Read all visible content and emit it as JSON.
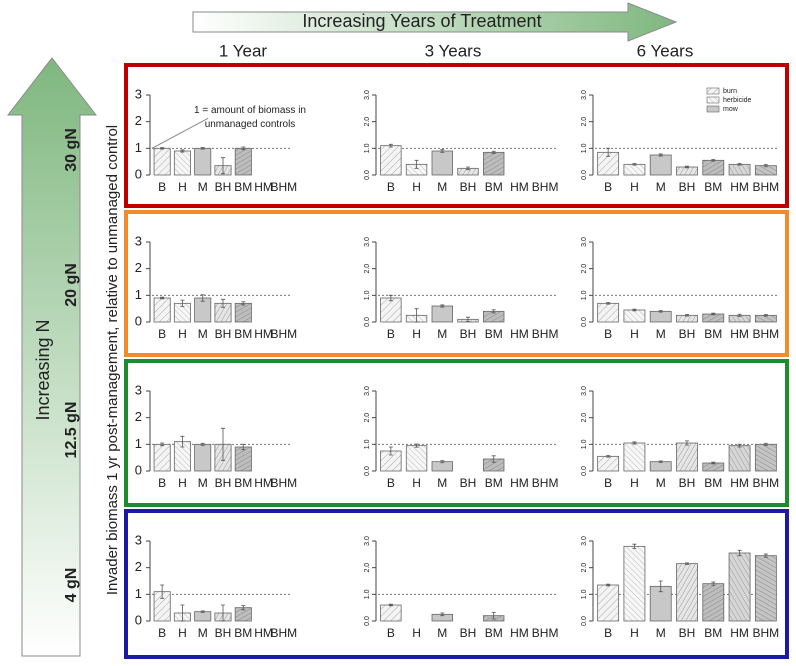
{
  "header": {
    "title": "Increasing Years of Treatment",
    "columns": [
      "1 Year",
      "3 Years",
      "6 Years"
    ]
  },
  "side": {
    "title": "Increasing N",
    "rows": [
      {
        "label": "30 gN",
        "color": "#c00000"
      },
      {
        "label": "20 gN",
        "color": "#f28c28"
      },
      {
        "label": "12.5 gN",
        "color": "#1e8c2e"
      },
      {
        "label": "4 gN",
        "color": "#1a1aa6"
      }
    ]
  },
  "y_label": "Invader biomass 1 yr post-management, relative to unmanaged control",
  "chart_data": [
    {
      "type": "bar",
      "categories": [
        "B",
        "H",
        "M",
        "BH",
        "BM",
        "HM",
        "BHM"
      ],
      "values": [
        1.0,
        0.9,
        1.0,
        0.35,
        1.0,
        null,
        null
      ],
      "errors": [
        0.03,
        0.04,
        0.03,
        0.3,
        0.05,
        null,
        null
      ],
      "reference_line": 1,
      "ylim": [
        0,
        3
      ],
      "yticks": [
        0,
        1,
        2,
        3
      ],
      "annotation": [
        "1 = amount of biomass in",
        "unmanaged controls"
      ]
    },
    {
      "type": "bar",
      "categories": [
        "B",
        "H",
        "M",
        "BH",
        "BM",
        "HM",
        "BHM"
      ],
      "values": [
        1.1,
        0.4,
        0.9,
        0.25,
        0.85,
        null,
        null
      ],
      "errors": [
        0.05,
        0.15,
        0.05,
        0.05,
        0.04,
        null,
        null
      ],
      "reference_line": 1,
      "ylim": [
        0,
        3
      ],
      "yticks": [
        {
          "value": 0,
          "label": "0.0"
        },
        {
          "value": 1,
          "label": "1.0"
        },
        {
          "value": 2,
          "label": "2.0"
        },
        {
          "value": 3,
          "label": "3.0"
        }
      ]
    },
    {
      "type": "bar",
      "categories": [
        "B",
        "H",
        "M",
        "BH",
        "BM",
        "HM",
        "BHM"
      ],
      "values": [
        0.85,
        0.4,
        0.75,
        0.3,
        0.55,
        0.4,
        0.35
      ],
      "errors": [
        0.15,
        0.03,
        0.04,
        0.03,
        0.03,
        0.03,
        0.04
      ],
      "reference_line": 1,
      "ylim": [
        0,
        3
      ],
      "yticks": [
        {
          "value": 0,
          "label": "0.0"
        },
        {
          "value": 1,
          "label": "1.0"
        },
        {
          "value": 2,
          "label": "2.0"
        },
        {
          "value": 3,
          "label": "3.0"
        }
      ],
      "legend": [
        "burn",
        "herbicide",
        "mow"
      ]
    },
    {
      "type": "bar",
      "categories": [
        "B",
        "H",
        "M",
        "BH",
        "BM",
        "HM",
        "BHM"
      ],
      "values": [
        0.9,
        0.7,
        0.9,
        0.7,
        0.7,
        null,
        null
      ],
      "errors": [
        0.03,
        0.12,
        0.12,
        0.15,
        0.06,
        null,
        null
      ],
      "reference_line": 1,
      "ylim": [
        0,
        3
      ],
      "yticks": [
        0,
        1,
        2,
        3
      ]
    },
    {
      "type": "bar",
      "categories": [
        "B",
        "H",
        "M",
        "BH",
        "BM",
        "HM",
        "BHM"
      ],
      "values": [
        0.9,
        0.25,
        0.6,
        0.1,
        0.4,
        null,
        null
      ],
      "errors": [
        0.1,
        0.25,
        0.04,
        0.08,
        0.06,
        null,
        null
      ],
      "reference_line": 1,
      "ylim": [
        0,
        3
      ],
      "yticks": [
        {
          "value": 0,
          "label": "0.0"
        },
        {
          "value": 1,
          "label": "1.0"
        },
        {
          "value": 2,
          "label": "2.0"
        },
        {
          "value": 3,
          "label": "3.0"
        }
      ]
    },
    {
      "type": "bar",
      "categories": [
        "B",
        "H",
        "M",
        "BH",
        "BM",
        "HM",
        "BHM"
      ],
      "values": [
        0.7,
        0.45,
        0.4,
        0.25,
        0.3,
        0.25,
        0.25
      ],
      "errors": [
        0.03,
        0.03,
        0.03,
        0.03,
        0.03,
        0.04,
        0.03
      ],
      "reference_line": 1,
      "ylim": [
        0,
        3
      ],
      "yticks": [
        {
          "value": 0,
          "label": "0.0"
        },
        {
          "value": 1,
          "label": "1.0"
        },
        {
          "value": 2,
          "label": "2.0"
        },
        {
          "value": 3,
          "label": "3.0"
        }
      ]
    },
    {
      "type": "bar",
      "categories": [
        "B",
        "H",
        "M",
        "BH",
        "BM",
        "HM",
        "BHM"
      ],
      "values": [
        1.0,
        1.1,
        1.0,
        1.0,
        0.9,
        null,
        null
      ],
      "errors": [
        0.05,
        0.2,
        0.04,
        0.6,
        0.1,
        null,
        null
      ],
      "reference_line": 1,
      "ylim": [
        0,
        3
      ],
      "yticks": [
        0,
        1,
        2,
        3
      ]
    },
    {
      "type": "bar",
      "categories": [
        "B",
        "H",
        "M",
        "BH",
        "BM",
        "HM",
        "BHM"
      ],
      "values": [
        0.75,
        0.95,
        0.35,
        null,
        0.45,
        null,
        null
      ],
      "errors": [
        0.15,
        0.06,
        0.04,
        null,
        0.12,
        null,
        null
      ],
      "reference_line": 1,
      "ylim": [
        0,
        3
      ],
      "yticks": [
        {
          "value": 0,
          "label": "0.0"
        },
        {
          "value": 1,
          "label": "1.0"
        },
        {
          "value": 2,
          "label": "2.0"
        },
        {
          "value": 3,
          "label": "3.0"
        }
      ]
    },
    {
      "type": "bar",
      "categories": [
        "B",
        "H",
        "M",
        "BH",
        "BM",
        "HM",
        "BHM"
      ],
      "values": [
        0.55,
        1.05,
        0.35,
        1.05,
        0.3,
        0.95,
        1.0
      ],
      "errors": [
        0.03,
        0.04,
        0.03,
        0.08,
        0.03,
        0.05,
        0.04
      ],
      "reference_line": 1,
      "ylim": [
        0,
        3
      ],
      "yticks": [
        {
          "value": 0,
          "label": "0.0"
        },
        {
          "value": 1,
          "label": "1.0"
        },
        {
          "value": 2,
          "label": "2.0"
        },
        {
          "value": 3,
          "label": "3.0"
        }
      ]
    },
    {
      "type": "bar",
      "categories": [
        "B",
        "H",
        "M",
        "BH",
        "BM",
        "HM",
        "BHM"
      ],
      "values": [
        1.1,
        0.3,
        0.35,
        0.3,
        0.5,
        null,
        null
      ],
      "errors": [
        0.25,
        0.3,
        0.03,
        0.3,
        0.08,
        null,
        null
      ],
      "reference_line": 1,
      "ylim": [
        0,
        3
      ],
      "yticks": [
        0,
        1,
        2,
        3
      ]
    },
    {
      "type": "bar",
      "categories": [
        "B",
        "H",
        "M",
        "BH",
        "BM",
        "HM",
        "BHM"
      ],
      "values": [
        0.6,
        null,
        0.25,
        null,
        0.2,
        null,
        null
      ],
      "errors": [
        0.03,
        null,
        0.05,
        null,
        0.12,
        null,
        null
      ],
      "reference_line": 1,
      "ylim": [
        0,
        3
      ],
      "yticks": [
        {
          "value": 0,
          "label": "0.0"
        },
        {
          "value": 1,
          "label": "1.0"
        },
        {
          "value": 2,
          "label": "2.0"
        },
        {
          "value": 3,
          "label": "3.0"
        }
      ]
    },
    {
      "type": "bar",
      "categories": [
        "B",
        "H",
        "M",
        "BH",
        "BM",
        "HM",
        "BHM"
      ],
      "values": [
        1.35,
        2.8,
        1.3,
        2.15,
        1.4,
        2.55,
        2.45
      ],
      "errors": [
        0.03,
        0.08,
        0.2,
        0.03,
        0.06,
        0.1,
        0.06
      ],
      "reference_line": 1,
      "ylim": [
        0,
        3
      ],
      "yticks": [
        {
          "value": 0,
          "label": "0.0"
        },
        {
          "value": 1,
          "label": "1.0"
        },
        {
          "value": 2,
          "label": "2.0"
        },
        {
          "value": 3,
          "label": "3.0"
        }
      ]
    }
  ]
}
